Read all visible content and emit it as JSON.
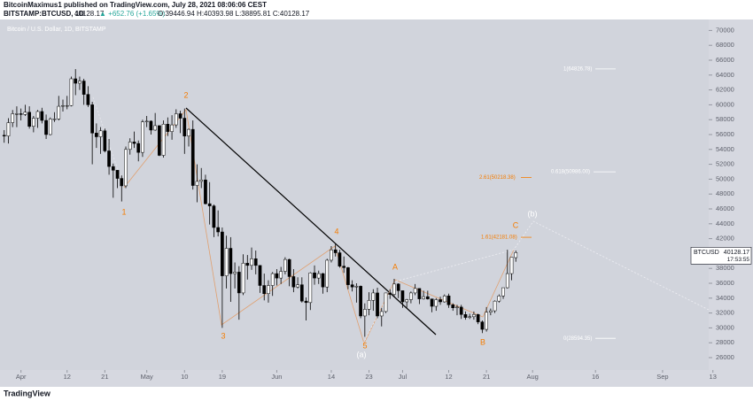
{
  "header": {
    "title": "BitcoinMaximus1 published on TradingView.com, July 28, 2021 08:06:06 CEST",
    "symbol": "BITSTAMP:BTCUSD, 1D",
    "last": "40128.17",
    "change": "▲ +652.76 (+1.65%)",
    "ohlc": "O:39446.94 H:40393.98 L:38895.81 C:40128.17"
  },
  "footer": {
    "brand": "TradingView"
  },
  "chart_data": {
    "type": "candlestick",
    "title": "Bitcoin / U.S. Dollar, 1D, BITSTAMP",
    "symbol": "BTCUSD",
    "countdown": "17:53:55",
    "up_color": "#ffffff",
    "down_color": "#000000",
    "wick_color": "#000000",
    "xlim": [
      "2021-03-27",
      "2021-09-12"
    ],
    "xticks": [
      {
        "value": "2021-04-01",
        "label": "Apr"
      },
      {
        "value": "2021-04-12",
        "label": "12"
      },
      {
        "value": "2021-04-21",
        "label": "21"
      },
      {
        "value": "2021-05-01",
        "label": "May"
      },
      {
        "value": "2021-05-10",
        "label": "10"
      },
      {
        "value": "2021-05-19",
        "label": "19"
      },
      {
        "value": "2021-06-01",
        "label": "Jun"
      },
      {
        "value": "2021-06-14",
        "label": "14"
      },
      {
        "value": "2021-06-23",
        "label": "23"
      },
      {
        "value": "2021-07-01",
        "label": "Jul"
      },
      {
        "value": "2021-07-12",
        "label": "12"
      },
      {
        "value": "2021-07-21",
        "label": "21"
      },
      {
        "value": "2021-08-01",
        "label": "Aug"
      },
      {
        "value": "2021-08-16",
        "label": "16"
      },
      {
        "value": "2021-09-01",
        "label": "Sep"
      },
      {
        "value": "2021-09-13",
        "label": "13"
      }
    ],
    "ylim": [
      24333,
      71476
    ],
    "yticks": [
      26000,
      28000,
      30000,
      32000,
      34000,
      36000,
      38000,
      40000,
      42000,
      44000,
      46000,
      48000,
      50000,
      52000,
      54000,
      56000,
      58000,
      60000,
      62000,
      64000,
      66000,
      68000,
      70000
    ],
    "x": [
      "2021-03-28",
      "2021-03-29",
      "2021-03-30",
      "2021-03-31",
      "2021-04-01",
      "2021-04-02",
      "2021-04-03",
      "2021-04-04",
      "2021-04-05",
      "2021-04-06",
      "2021-04-07",
      "2021-04-08",
      "2021-04-09",
      "2021-04-10",
      "2021-04-11",
      "2021-04-12",
      "2021-04-13",
      "2021-04-14",
      "2021-04-15",
      "2021-04-16",
      "2021-04-17",
      "2021-04-18",
      "2021-04-19",
      "2021-04-20",
      "2021-04-21",
      "2021-04-22",
      "2021-04-23",
      "2021-04-24",
      "2021-04-25",
      "2021-04-26",
      "2021-04-27",
      "2021-04-28",
      "2021-04-29",
      "2021-04-30",
      "2021-05-01",
      "2021-05-02",
      "2021-05-03",
      "2021-05-04",
      "2021-05-05",
      "2021-05-06",
      "2021-05-07",
      "2021-05-08",
      "2021-05-09",
      "2021-05-10",
      "2021-05-11",
      "2021-05-12",
      "2021-05-13",
      "2021-05-14",
      "2021-05-15",
      "2021-05-16",
      "2021-05-17",
      "2021-05-18",
      "2021-05-19",
      "2021-05-20",
      "2021-05-21",
      "2021-05-22",
      "2021-05-23",
      "2021-05-24",
      "2021-05-25",
      "2021-05-26",
      "2021-05-27",
      "2021-05-28",
      "2021-05-29",
      "2021-05-30",
      "2021-05-31",
      "2021-06-01",
      "2021-06-02",
      "2021-06-03",
      "2021-06-04",
      "2021-06-05",
      "2021-06-06",
      "2021-06-07",
      "2021-06-08",
      "2021-06-09",
      "2021-06-10",
      "2021-06-11",
      "2021-06-12",
      "2021-06-13",
      "2021-06-14",
      "2021-06-15",
      "2021-06-16",
      "2021-06-17",
      "2021-06-18",
      "2021-06-19",
      "2021-06-20",
      "2021-06-21",
      "2021-06-22",
      "2021-06-23",
      "2021-06-24",
      "2021-06-25",
      "2021-06-26",
      "2021-06-27",
      "2021-06-28",
      "2021-06-29",
      "2021-06-30",
      "2021-07-01",
      "2021-07-02",
      "2021-07-03",
      "2021-07-04",
      "2021-07-05",
      "2021-07-06",
      "2021-07-07",
      "2021-07-08",
      "2021-07-09",
      "2021-07-10",
      "2021-07-11",
      "2021-07-12",
      "2021-07-13",
      "2021-07-14",
      "2021-07-15",
      "2021-07-16",
      "2021-07-17",
      "2021-07-18",
      "2021-07-19",
      "2021-07-20",
      "2021-07-21",
      "2021-07-22",
      "2021-07-23",
      "2021-07-24",
      "2021-07-25",
      "2021-07-26",
      "2021-07-27",
      "2021-07-28"
    ],
    "open": [
      55900,
      55800,
      57600,
      58800,
      58800,
      58700,
      59000,
      57100,
      58200,
      59100,
      57900,
      56000,
      58100,
      58100,
      59800,
      59900,
      59900,
      63500,
      62900,
      63200,
      61400,
      60000,
      56200,
      55700,
      56500,
      53800,
      51700,
      51200,
      50100,
      49100,
      54000,
      55000,
      54800,
      53600,
      57700,
      57800,
      56600,
      57200,
      53200,
      57400,
      56400,
      57300,
      58800,
      58200,
      55800,
      56700,
      49150,
      49700,
      49900,
      46700,
      46400,
      43500,
      42900,
      37000,
      40700,
      37300,
      37500,
      34700,
      38700,
      38400,
      39300,
      38400,
      35700,
      34600,
      35700,
      37300,
      36700,
      37600,
      39200,
      36900,
      35500,
      35800,
      33600,
      33400,
      37400,
      36700,
      37300,
      35500,
      39100,
      40500,
      40100,
      38300,
      38100,
      35800,
      35500,
      35600,
      31600,
      32500,
      33700,
      34700,
      31600,
      32200,
      34700,
      34500,
      35900,
      35000,
      33500,
      33800,
      34700,
      35300,
      33900,
      34200,
      33900,
      32900,
      33800,
      33500,
      34300,
      33100,
      32700,
      32800,
      31800,
      31400,
      31500,
      31800,
      30800,
      29800,
      32100,
      32300,
      33600,
      34300,
      35400,
      37300,
      39446.94
    ],
    "high": [
      56600,
      58200,
      59300,
      59800,
      59500,
      60000,
      59800,
      58500,
      59300,
      59600,
      58700,
      58300,
      59000,
      61200,
      60700,
      61200,
      63800,
      64800,
      63800,
      63500,
      62500,
      60400,
      57500,
      57000,
      56800,
      55400,
      52100,
      51200,
      50500,
      54400,
      55500,
      56400,
      55200,
      58000,
      58500,
      57900,
      58900,
      57200,
      57900,
      58300,
      58600,
      59400,
      59200,
      59500,
      56800,
      57900,
      52000,
      51500,
      50600,
      49600,
      46600,
      45800,
      43500,
      42400,
      42200,
      38800,
      38300,
      39900,
      39800,
      40800,
      40400,
      38400,
      37300,
      36400,
      37500,
      37900,
      38200,
      39500,
      39300,
      37900,
      36800,
      36800,
      34100,
      37500,
      38400,
      37700,
      37400,
      39300,
      41000,
      41300,
      40500,
      39600,
      38200,
      36400,
      36000,
      35700,
      33300,
      34800,
      35200,
      35400,
      32700,
      34700,
      35200,
      36600,
      36000,
      35000,
      33900,
      34900,
      35900,
      35300,
      35000,
      35000,
      33900,
      34000,
      34200,
      34500,
      34600,
      33300,
      33100,
      33100,
      32200,
      31900,
      32200,
      31900,
      31000,
      32800,
      32600,
      33700,
      34500,
      35400,
      40500,
      39500,
      40393.98
    ],
    "low": [
      54900,
      54800,
      57000,
      57000,
      57900,
      58500,
      56800,
      56300,
      56900,
      57500,
      55400,
      55900,
      57700,
      57900,
      59100,
      59400,
      59800,
      61300,
      62000,
      60000,
      59700,
      52000,
      54200,
      53400,
      53600,
      50600,
      47500,
      48800,
      47000,
      48800,
      53300,
      54200,
      52400,
      53000,
      57000,
      56000,
      56500,
      53100,
      52900,
      55800,
      55300,
      56900,
      56200,
      53400,
      54400,
      48600,
      46900,
      48800,
      46600,
      43900,
      42200,
      42300,
      30000,
      35300,
      33500,
      35300,
      31100,
      34400,
      36500,
      37800,
      37200,
      34700,
      33700,
      33400,
      34300,
      35700,
      35900,
      37200,
      35600,
      34800,
      35300,
      33400,
      31000,
      32400,
      35800,
      35900,
      34600,
      34800,
      38800,
      39600,
      38100,
      37400,
      35200,
      34900,
      33400,
      31300,
      28800,
      31700,
      32300,
      31300,
      30200,
      32000,
      33900,
      34200,
      34000,
      32700,
      32700,
      33300,
      34400,
      33200,
      33800,
      33800,
      32100,
      32300,
      33100,
      33400,
      32700,
      32300,
      31700,
      31200,
      31100,
      31200,
      31100,
      30500,
      29300,
      29500,
      31700,
      32000,
      33400,
      33900,
      35300,
      36400,
      38895.81
    ],
    "close": [
      55800,
      57600,
      58800,
      58800,
      58700,
      59000,
      57100,
      58200,
      59100,
      57900,
      56000,
      58100,
      58100,
      59800,
      59900,
      59900,
      63500,
      62900,
      63200,
      61400,
      60000,
      56200,
      55700,
      56500,
      53800,
      51700,
      51200,
      50100,
      49100,
      54000,
      55000,
      54800,
      53600,
      57700,
      57800,
      56600,
      57200,
      53200,
      57400,
      56400,
      57300,
      58800,
      58200,
      55800,
      56700,
      49150,
      49700,
      49900,
      46700,
      46400,
      43500,
      42900,
      37000,
      40700,
      37300,
      37500,
      34700,
      38700,
      38400,
      39300,
      38400,
      35700,
      34600,
      35700,
      37300,
      36700,
      37600,
      39200,
      36900,
      35500,
      35800,
      33600,
      33400,
      37400,
      36700,
      37300,
      35500,
      39100,
      40500,
      40100,
      38300,
      38100,
      35800,
      35500,
      35600,
      31600,
      32500,
      33700,
      34700,
      31600,
      32200,
      34700,
      34500,
      35900,
      35000,
      33500,
      33800,
      34700,
      35300,
      33900,
      34200,
      33900,
      32900,
      33800,
      33500,
      34300,
      33100,
      32700,
      32800,
      31800,
      31400,
      31500,
      31800,
      30800,
      29800,
      32100,
      32300,
      33600,
      34300,
      35400,
      37300,
      39500,
      40128.17
    ],
    "fib_levels": [
      {
        "label": "1(64826.78)",
        "value": 64826.78,
        "color": "#ffffff"
      },
      {
        "label": "0.618(50986.00)",
        "value": 50986.0,
        "color": "#ffffff"
      },
      {
        "label": "2.61(50218.38)",
        "value": 50218.38,
        "color": "#f57c00"
      },
      {
        "label": "1.61(42181.08)",
        "value": 42181.08,
        "color": "#f57c00"
      },
      {
        "label": "0(28594.35)",
        "value": 28594.35,
        "color": "#ffffff"
      }
    ],
    "annotations": [
      {
        "text": "1",
        "color": "#f57c00"
      },
      {
        "text": "2",
        "color": "#f57c00"
      },
      {
        "text": "3",
        "color": "#f57c00"
      },
      {
        "text": "4",
        "color": "#f57c00"
      },
      {
        "text": "5",
        "color": "#f57c00"
      },
      {
        "text": "A",
        "color": "#f57c00"
      },
      {
        "text": "B",
        "color": "#f57c00"
      },
      {
        "text": "C",
        "color": "#f57c00"
      },
      {
        "text": "(a)",
        "color": "#ffffff"
      },
      {
        "text": "(b)",
        "color": "#ffffff"
      }
    ]
  }
}
